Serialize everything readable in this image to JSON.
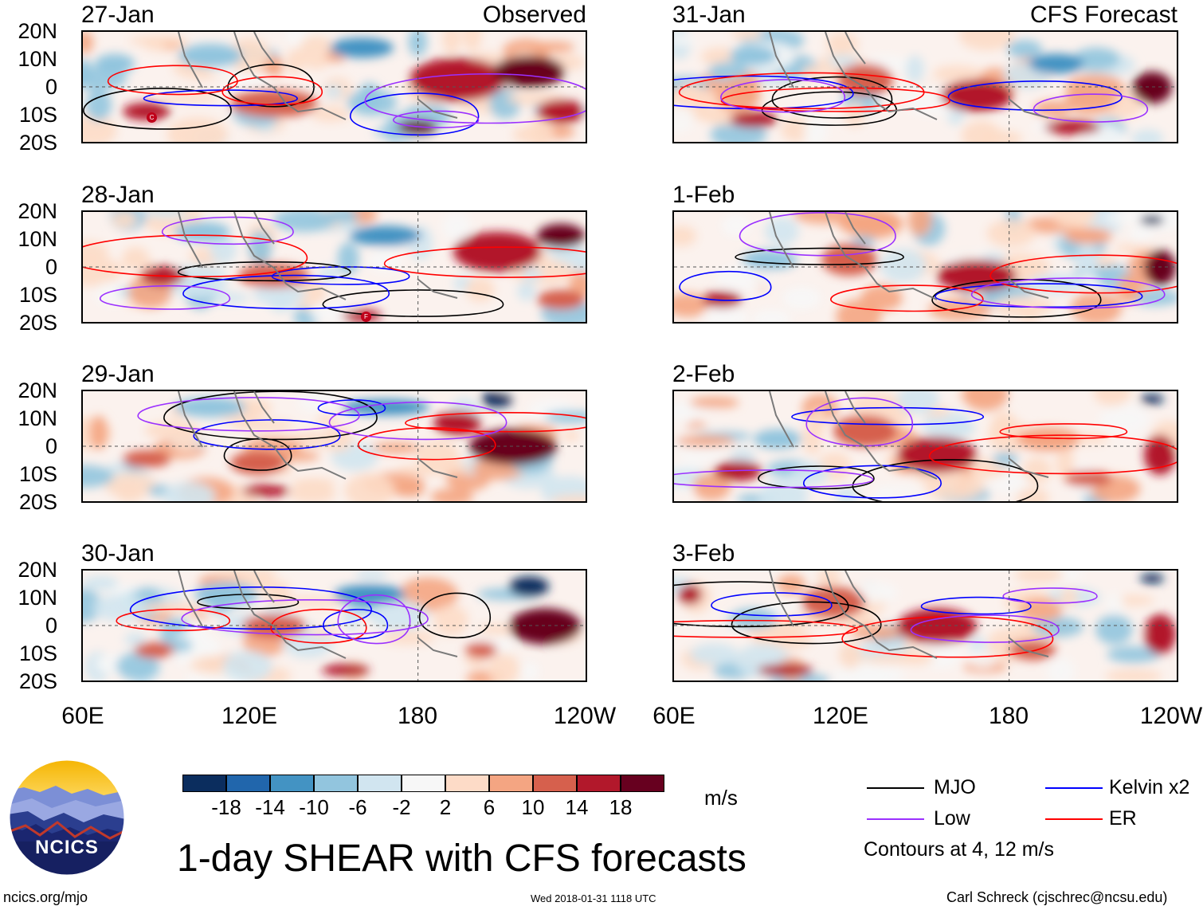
{
  "figure": {
    "title": "1-day SHEAR with CFS forecasts",
    "units": "m/s",
    "contour_note": "Contours at 4, 12 m/s",
    "url": "ncics.org/mjo",
    "timestamp": "Wed 2018-01-31 1118 UTC",
    "credit": "Carl Schreck (cjschrec@ncsu.edu)",
    "logo_text": "NCICS"
  },
  "columns": {
    "left_title": "Observed",
    "right_title": "CFS Forecast"
  },
  "panels": {
    "left": [
      "27-Jan",
      "28-Jan",
      "29-Jan",
      "30-Jan"
    ],
    "right": [
      "31-Jan",
      "1-Feb",
      "2-Feb",
      "3-Feb"
    ]
  },
  "lat_labels": [
    "20N",
    "10N",
    "0",
    "10S",
    "20S"
  ],
  "lon_labels": [
    "60E",
    "120E",
    "180",
    "120W"
  ],
  "storm_markers": [
    "C",
    "F"
  ],
  "colorbar": {
    "labels": [
      "-18",
      "-14",
      "-10",
      "-6",
      "-2",
      "2",
      "6",
      "10",
      "14",
      "18"
    ],
    "colors": [
      "#0b2d5e",
      "#2166ac",
      "#4393c3",
      "#92c5de",
      "#d1e5f0",
      "#f7f7f7",
      "#fddbc7",
      "#f4a582",
      "#d6604d",
      "#b2182b",
      "#67001f"
    ]
  },
  "legend": {
    "mjo": {
      "label": "MJO",
      "color": "#000000"
    },
    "low": {
      "label": "Low",
      "color": "#9b30ff"
    },
    "kelvin": {
      "label": "Kelvin x2",
      "color": "#0000ff"
    },
    "er": {
      "label": "ER",
      "color": "#ff0000"
    }
  }
}
